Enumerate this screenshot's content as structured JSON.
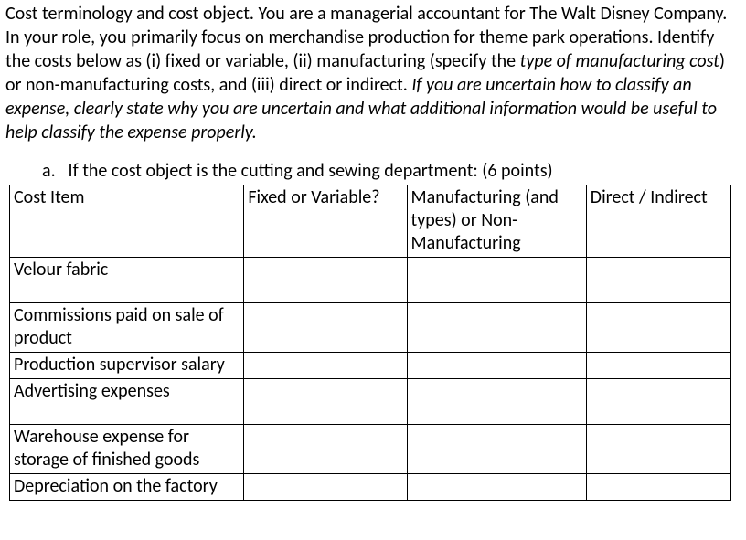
{
  "prompt": {
    "p1_a": "Cost terminology and cost object. You are a managerial accountant for The Walt Disney Company. In your role, you primarily focus on merchandise production for theme park operations. Identify the costs below as (i) fixed or variable, (ii) manufacturing (specify the ",
    "p1_b": "type of manufacturing cost",
    "p1_c": ") or non-manufacturing costs, and (iii) direct or indirect. ",
    "p1_d": "If you are uncertain how to classify an expense, clearly state why you are uncertain and what additional information would be useful to help classify the expense properly."
  },
  "question": {
    "letter": "a.",
    "text": "If the cost object is the cutting and sewing department:  (6 points)"
  },
  "table": {
    "headers": {
      "c1": "Cost Item",
      "c2": "Fixed or Variable?",
      "c3": "Manufacturing (and types) or Non-Manufacturing",
      "c4": "Direct / Indirect"
    },
    "rows": [
      {
        "item": "Velour fabric",
        "fv": "",
        "mn": "",
        "di": ""
      },
      {
        "item": "Commissions paid on sale of product",
        "fv": "",
        "mn": "",
        "di": ""
      },
      {
        "item": "Production supervisor salary",
        "fv": "",
        "mn": "",
        "di": ""
      },
      {
        "item": "Advertising expenses",
        "fv": "",
        "mn": "",
        "di": ""
      },
      {
        "item": "Warehouse expense for storage of finished goods",
        "fv": "",
        "mn": "",
        "di": ""
      },
      {
        "item": "Depreciation on the factory",
        "fv": "",
        "mn": "",
        "di": ""
      }
    ]
  }
}
